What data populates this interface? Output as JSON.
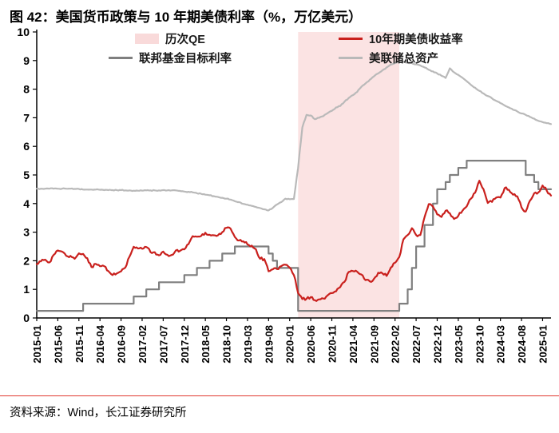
{
  "figure": {
    "title": "图 42：美国货币政策与 10 年期美债利率（%，万亿美元）",
    "source": "资料来源：Wind，长江证券研究所"
  },
  "legend": {
    "qe": "历次QE",
    "treasury": "10年期美债收益率",
    "ffr": "联邦基金目标利率",
    "assets": "美联储总资产"
  },
  "colors": {
    "treasury": "#c9201d",
    "ffr": "#7f7f7f",
    "assets": "#b9b9b9",
    "qe_fill": "#f9dada",
    "accent_rule": "#e0382f",
    "axis": "#000000"
  },
  "chart_data": {
    "type": "line",
    "title": "美国货币政策与 10 年期美债利率",
    "units": "%，万亿美元",
    "ylim": [
      0,
      10
    ],
    "yticks": [
      0,
      1,
      2,
      3,
      4,
      5,
      6,
      7,
      8,
      9,
      10
    ],
    "x_start": "2015-01",
    "x_freq": "monthly",
    "xtick_step": 5,
    "xtick_labels": [
      "2015-01",
      "2015-06",
      "2015-11",
      "2016-04",
      "2016-09",
      "2017-02",
      "2017-07",
      "2017-12",
      "2018-05",
      "2018-10",
      "2019-03",
      "2019-08",
      "2020-01",
      "2020-06",
      "2020-11",
      "2021-04",
      "2021-09",
      "2022-02",
      "2022-07",
      "2022-12",
      "2023-05",
      "2023-10",
      "2024-03",
      "2024-08",
      "2025-01"
    ],
    "grid": false,
    "legend_position": "top-inside",
    "qe_region": {
      "label": "历次QE",
      "start": "2020-03",
      "end": "2022-03",
      "start_index": 62,
      "end_index": 86,
      "color": "#f9dada",
      "opacity": 0.75
    },
    "series": [
      {
        "name": "10年期美债收益率",
        "type": "line",
        "color": "#c9201d",
        "width": 2.2,
        "jitter": 0.05,
        "values": [
          1.88,
          1.98,
          2.04,
          1.94,
          2.2,
          2.36,
          2.32,
          2.17,
          2.17,
          2.07,
          2.26,
          2.24,
          2.09,
          1.78,
          1.89,
          1.81,
          1.81,
          1.64,
          1.5,
          1.56,
          1.63,
          1.76,
          2.14,
          2.49,
          2.43,
          2.42,
          2.48,
          2.3,
          2.3,
          2.19,
          2.32,
          2.21,
          2.2,
          2.36,
          2.35,
          2.4,
          2.58,
          2.86,
          2.84,
          2.87,
          2.98,
          2.91,
          2.89,
          2.89,
          3.0,
          3.15,
          3.12,
          2.83,
          2.71,
          2.68,
          2.57,
          2.53,
          2.4,
          2.07,
          2.06,
          1.63,
          1.7,
          1.71,
          1.81,
          1.86,
          1.76,
          1.5,
          0.87,
          0.66,
          0.67,
          0.73,
          0.62,
          0.65,
          0.68,
          0.79,
          0.87,
          0.93,
          1.08,
          1.26,
          1.61,
          1.64,
          1.62,
          1.52,
          1.32,
          1.28,
          1.37,
          1.58,
          1.56,
          1.47,
          1.76,
          1.93,
          2.13,
          2.75,
          2.9,
          3.14,
          2.9,
          2.9,
          3.52,
          3.98,
          3.89,
          3.62,
          3.53,
          3.75,
          3.66,
          3.46,
          3.57,
          3.75,
          3.9,
          4.17,
          4.38,
          4.8,
          4.5,
          4.02,
          4.06,
          4.21,
          4.21,
          4.54,
          4.48,
          4.31,
          4.25,
          3.87,
          3.72,
          4.1,
          4.36,
          4.39,
          4.63,
          4.45,
          4.28
        ]
      },
      {
        "name": "联邦基金目标利率",
        "type": "step",
        "color": "#7f7f7f",
        "width": 2.2,
        "jitter": 0,
        "values": [
          0.25,
          0.25,
          0.25,
          0.25,
          0.25,
          0.25,
          0.25,
          0.25,
          0.25,
          0.25,
          0.25,
          0.5,
          0.5,
          0.5,
          0.5,
          0.5,
          0.5,
          0.5,
          0.5,
          0.5,
          0.5,
          0.5,
          0.5,
          0.75,
          0.75,
          0.75,
          1.0,
          1.0,
          1.0,
          1.25,
          1.25,
          1.25,
          1.25,
          1.25,
          1.25,
          1.5,
          1.5,
          1.5,
          1.75,
          1.75,
          1.75,
          2.0,
          2.0,
          2.0,
          2.25,
          2.25,
          2.25,
          2.5,
          2.5,
          2.5,
          2.5,
          2.5,
          2.5,
          2.5,
          2.5,
          2.25,
          2.0,
          1.75,
          1.75,
          1.75,
          1.75,
          1.75,
          0.25,
          0.25,
          0.25,
          0.25,
          0.25,
          0.25,
          0.25,
          0.25,
          0.25,
          0.25,
          0.25,
          0.25,
          0.25,
          0.25,
          0.25,
          0.25,
          0.25,
          0.25,
          0.25,
          0.25,
          0.25,
          0.25,
          0.25,
          0.25,
          0.5,
          0.5,
          1.0,
          1.75,
          2.5,
          2.5,
          3.25,
          3.25,
          4.0,
          4.5,
          4.5,
          4.75,
          5.0,
          5.0,
          5.25,
          5.25,
          5.5,
          5.5,
          5.5,
          5.5,
          5.5,
          5.5,
          5.5,
          5.5,
          5.5,
          5.5,
          5.5,
          5.5,
          5.5,
          5.5,
          5.0,
          5.0,
          4.75,
          4.5,
          4.5,
          4.5,
          4.5
        ]
      },
      {
        "name": "美联储总资产",
        "type": "line",
        "color": "#b9b9b9",
        "width": 2.2,
        "jitter": 0.015,
        "values": [
          4.52,
          4.52,
          4.52,
          4.52,
          4.52,
          4.52,
          4.52,
          4.52,
          4.52,
          4.51,
          4.51,
          4.49,
          4.49,
          4.49,
          4.49,
          4.48,
          4.47,
          4.47,
          4.47,
          4.47,
          4.47,
          4.46,
          4.46,
          4.45,
          4.45,
          4.45,
          4.46,
          4.46,
          4.46,
          4.46,
          4.47,
          4.46,
          4.46,
          4.46,
          4.44,
          4.42,
          4.41,
          4.39,
          4.36,
          4.34,
          4.31,
          4.29,
          4.26,
          4.23,
          4.2,
          4.17,
          4.14,
          4.08,
          4.05,
          3.99,
          3.96,
          3.92,
          3.88,
          3.84,
          3.8,
          3.76,
          3.85,
          3.97,
          4.05,
          4.17,
          4.15,
          4.16,
          5.25,
          6.66,
          7.1,
          7.08,
          6.95,
          7.0,
          7.06,
          7.16,
          7.24,
          7.36,
          7.41,
          7.56,
          7.69,
          7.79,
          7.9,
          8.08,
          8.2,
          8.33,
          8.45,
          8.55,
          8.66,
          8.76,
          8.86,
          8.91,
          8.94,
          8.96,
          8.92,
          8.91,
          8.87,
          8.83,
          8.76,
          8.68,
          8.62,
          8.55,
          8.47,
          8.39,
          8.73,
          8.59,
          8.5,
          8.4,
          8.28,
          8.15,
          8.05,
          7.94,
          7.85,
          7.76,
          7.68,
          7.59,
          7.51,
          7.43,
          7.36,
          7.28,
          7.22,
          7.15,
          7.1,
          7.03,
          6.97,
          6.89,
          6.85,
          6.81,
          6.78
        ]
      }
    ]
  }
}
